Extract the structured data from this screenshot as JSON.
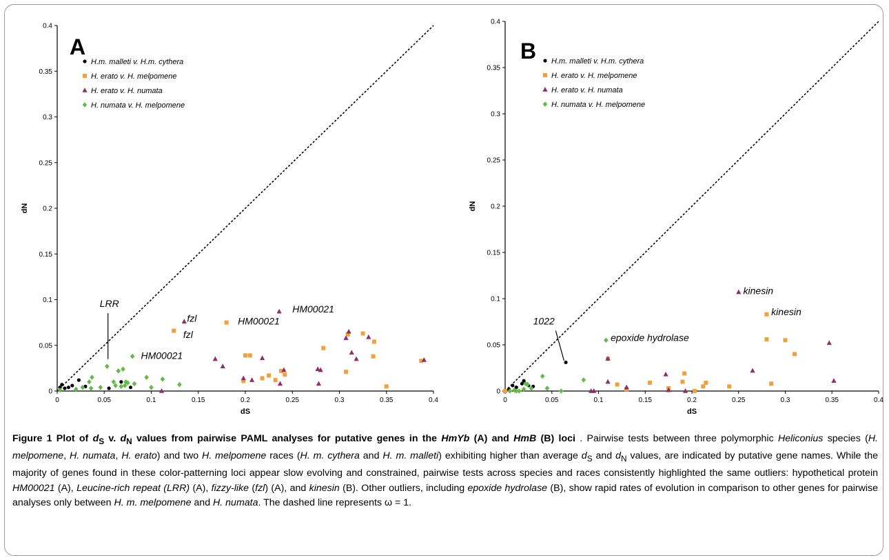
{
  "chart_data": [
    {
      "type": "scatter",
      "panel_label": "A",
      "xlabel": "dS",
      "ylabel": "dN",
      "xlim": [
        0,
        0.4
      ],
      "ylim": [
        0,
        0.4
      ],
      "x_ticks": [
        "0",
        "0.05",
        "0.1",
        "0.15",
        "0.2",
        "0.25",
        "0.3",
        "0.35",
        "0.4"
      ],
      "y_ticks": [
        "0",
        "0.05",
        "0.1",
        "0.15",
        "0.2",
        "0.25",
        "0.3",
        "0.35",
        "0.4"
      ],
      "reference_line": "dashed diagonal y = x",
      "legend_position": "top-left",
      "series": [
        {
          "name": "H.m. malleti v. H.m. cythera",
          "color": "#000000",
          "marker": "circle",
          "points": [
            [
              0.003,
              0.004
            ],
            [
              0.005,
              0.007
            ],
            [
              0.008,
              0.003
            ],
            [
              0.012,
              0.004
            ],
            [
              0.016,
              0.006
            ],
            [
              0.023,
              0.012
            ],
            [
              0.03,
              0.005
            ],
            [
              0.055,
              0.003
            ],
            [
              0.068,
              0.01
            ],
            [
              0.078,
              0.004
            ]
          ]
        },
        {
          "name": "H. erato v. H. melpomene",
          "color": "#f2a03c",
          "marker": "square",
          "points": [
            [
              0.124,
              0.066
            ],
            [
              0.18,
              0.075
            ],
            [
              0.198,
              0.011
            ],
            [
              0.2,
              0.039
            ],
            [
              0.205,
              0.039
            ],
            [
              0.218,
              0.014
            ],
            [
              0.225,
              0.017
            ],
            [
              0.232,
              0.012
            ],
            [
              0.238,
              0.022
            ],
            [
              0.242,
              0.018
            ],
            [
              0.283,
              0.047
            ],
            [
              0.307,
              0.021
            ],
            [
              0.309,
              0.062
            ],
            [
              0.325,
              0.063
            ],
            [
              0.337,
              0.054
            ],
            [
              0.336,
              0.038
            ],
            [
              0.35,
              0.005
            ],
            [
              0.387,
              0.033
            ]
          ]
        },
        {
          "name": "H. erato v. H. numata",
          "color": "#8e2f66",
          "marker": "triangle",
          "points": [
            [
              0.111,
              0.0
            ],
            [
              0.135,
              0.076
            ],
            [
              0.168,
              0.035
            ],
            [
              0.176,
              0.027
            ],
            [
              0.198,
              0.014
            ],
            [
              0.207,
              0.012
            ],
            [
              0.218,
              0.036
            ],
            [
              0.236,
              0.087
            ],
            [
              0.237,
              0.008
            ],
            [
              0.241,
              0.023
            ],
            [
              0.277,
              0.024
            ],
            [
              0.278,
              0.008
            ],
            [
              0.28,
              0.023
            ],
            [
              0.307,
              0.058
            ],
            [
              0.31,
              0.065
            ],
            [
              0.313,
              0.042
            ],
            [
              0.318,
              0.035
            ],
            [
              0.331,
              0.059
            ],
            [
              0.39,
              0.034
            ]
          ]
        },
        {
          "name": "H. numata v. H. melpomene",
          "color": "#62ba47",
          "marker": "diamond",
          "points": [
            [
              0.003,
              0.001
            ],
            [
              0.02,
              0.002
            ],
            [
              0.027,
              0.004
            ],
            [
              0.034,
              0.01
            ],
            [
              0.036,
              0.003
            ],
            [
              0.037,
              0.015
            ],
            [
              0.046,
              0.004
            ],
            [
              0.053,
              0.027
            ],
            [
              0.06,
              0.01
            ],
            [
              0.062,
              0.006
            ],
            [
              0.065,
              0.022
            ],
            [
              0.068,
              0.005
            ],
            [
              0.07,
              0.024
            ],
            [
              0.072,
              0.006
            ],
            [
              0.073,
              0.01
            ],
            [
              0.075,
              0.009
            ],
            [
              0.08,
              0.038
            ],
            [
              0.082,
              0.008
            ],
            [
              0.095,
              0.015
            ],
            [
              0.1,
              0.004
            ],
            [
              0.112,
              0.013
            ],
            [
              0.13,
              0.007
            ]
          ]
        }
      ],
      "annotations": [
        {
          "text": "LRR",
          "x": 0.054,
          "y": 0.092,
          "pointer_to": [
            0.054,
            0.035
          ]
        },
        {
          "text": "fzl",
          "x": 0.138,
          "y": 0.076
        },
        {
          "text": "fzl",
          "x": 0.134,
          "y": 0.058
        },
        {
          "text": "HM00021",
          "x": 0.192,
          "y": 0.073
        },
        {
          "text": "HM00021",
          "x": 0.25,
          "y": 0.086
        },
        {
          "text": "HM00021",
          "x": 0.089,
          "y": 0.035
        }
      ]
    },
    {
      "type": "scatter",
      "panel_label": "B",
      "xlabel": "dS",
      "ylabel": "dN",
      "xlim": [
        0,
        0.4
      ],
      "ylim": [
        0,
        0.4
      ],
      "x_ticks": [
        "0",
        "0.05",
        "0.1",
        "0.15",
        "0.2",
        "0.25",
        "0.3",
        "0.35",
        "0.4"
      ],
      "y_ticks": [
        "0",
        "0.05",
        "0.1",
        "0.15",
        "0.2",
        "0.25",
        "0.3",
        "0.35",
        "0.4"
      ],
      "reference_line": "dashed diagonal y = x",
      "legend_position": "top-left",
      "series": [
        {
          "name": "H.m. malleti v. H.m. cythera",
          "color": "#000000",
          "marker": "circle",
          "points": [
            [
              0.004,
              0.002
            ],
            [
              0.008,
              0.006
            ],
            [
              0.012,
              0.004
            ],
            [
              0.018,
              0.008
            ],
            [
              0.02,
              0.011
            ],
            [
              0.025,
              0.006
            ],
            [
              0.03,
              0.005
            ],
            [
              0.065,
              0.031
            ]
          ]
        },
        {
          "name": "H. erato v. H. melpomene",
          "color": "#f2a03c",
          "marker": "square",
          "points": [
            [
              0.0,
              0.0
            ],
            [
              0.11,
              0.035
            ],
            [
              0.12,
              0.007
            ],
            [
              0.13,
              0.002
            ],
            [
              0.155,
              0.009
            ],
            [
              0.175,
              0.003
            ],
            [
              0.19,
              0.01
            ],
            [
              0.192,
              0.019
            ],
            [
              0.203,
              0.0
            ],
            [
              0.212,
              0.005
            ],
            [
              0.215,
              0.009
            ],
            [
              0.24,
              0.005
            ],
            [
              0.28,
              0.083
            ],
            [
              0.28,
              0.056
            ],
            [
              0.285,
              0.008
            ],
            [
              0.3,
              0.055
            ],
            [
              0.31,
              0.04
            ]
          ]
        },
        {
          "name": "H. erato v. H. numata",
          "color": "#8e2f66",
          "marker": "triangle",
          "points": [
            [
              0.092,
              0.0
            ],
            [
              0.095,
              0.0
            ],
            [
              0.11,
              0.01
            ],
            [
              0.11,
              0.035
            ],
            [
              0.13,
              0.004
            ],
            [
              0.172,
              0.018
            ],
            [
              0.175,
              0.001
            ],
            [
              0.193,
              0.0
            ],
            [
              0.25,
              0.107
            ],
            [
              0.265,
              0.022
            ],
            [
              0.347,
              0.052
            ],
            [
              0.352,
              0.011
            ]
          ]
        },
        {
          "name": "H. numata v. H. melpomene",
          "color": "#62ba47",
          "marker": "diamond",
          "points": [
            [
              0.005,
              0.0
            ],
            [
              0.01,
              0.001
            ],
            [
              0.012,
              0.0
            ],
            [
              0.015,
              0.0
            ],
            [
              0.02,
              0.002
            ],
            [
              0.022,
              0.008
            ],
            [
              0.024,
              0.007
            ],
            [
              0.028,
              0.003
            ],
            [
              0.04,
              0.016
            ],
            [
              0.045,
              0.003
            ],
            [
              0.06,
              0.0
            ],
            [
              0.084,
              0.012
            ],
            [
              0.108,
              0.055
            ]
          ]
        }
      ],
      "annotations": [
        {
          "text": "1022",
          "x": 0.03,
          "y": 0.072,
          "pointer_to": [
            0.063,
            0.033
          ]
        },
        {
          "text": "epoxide hydrolase",
          "x": 0.113,
          "y": 0.054
        },
        {
          "text": "kinesin",
          "x": 0.255,
          "y": 0.105
        },
        {
          "text": "kinesin",
          "x": 0.285,
          "y": 0.082
        }
      ]
    }
  ],
  "caption": {
    "lead_parts": [
      "Figure 1 Plot of ",
      "d",
      "S",
      " v. ",
      "d",
      "N",
      " values from pairwise PAML analyses for putative genes in the ",
      "HmYb",
      " (A) and ",
      "HmB",
      " (B) loci"
    ],
    "parts": [
      ". Pairwise tests between three polymorphic ",
      "Heliconius",
      " species (",
      "H. melpomene",
      ", ",
      "H. numata",
      ", ",
      "H. erato",
      ") and two ",
      "H. melpomene",
      " races (",
      "H. m. cythera",
      " and ",
      "H. m. malleti",
      ") exhibiting higher than average ",
      "d",
      "S",
      " and ",
      "d",
      "N",
      " values, are indicated by putative gene names. While the majority of genes found in these color-patterning loci appear slow evolving and constrained, pairwise tests across species and races consistently highlighted the same outliers: hypothetical protein ",
      "HM00021",
      " (A), ",
      "Leucine-rich repeat (LRR)",
      " (A), ",
      "fizzy-like",
      " (",
      "fzl",
      ") (A), and ",
      "kinesin",
      " (B). Other outliers, including ",
      "epoxide hydrolase",
      " (B), show rapid rates of evolution in comparison to other genes for pairwise analyses only between ",
      "H. m. melpomene",
      " and ",
      "H. numata",
      ". The dashed line represents ω = 1."
    ]
  }
}
